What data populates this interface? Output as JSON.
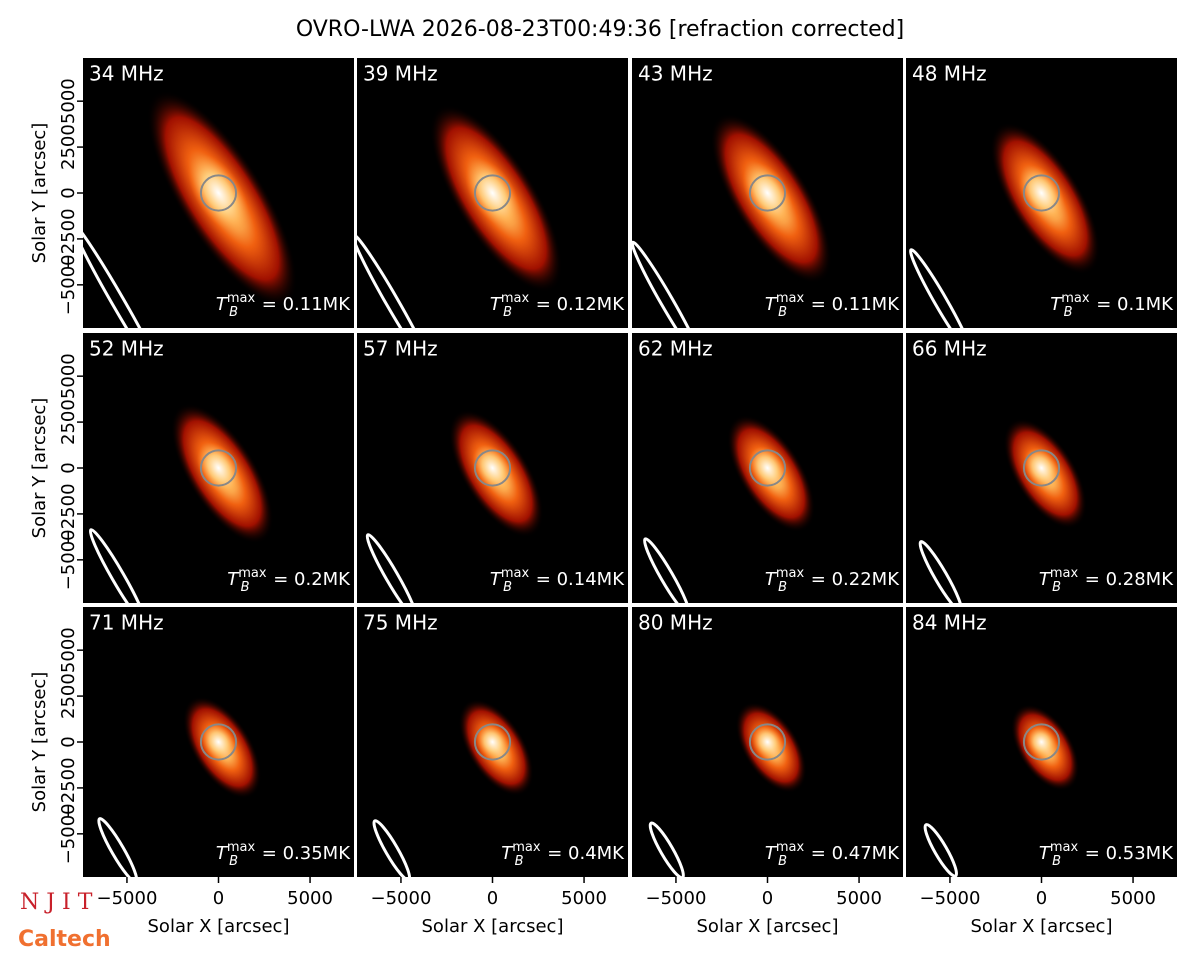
{
  "title": "OVRO-LWA 2026-08-23T00:49:36 [refraction corrected]",
  "logos": [
    "N J I T",
    "Caltech"
  ],
  "axes": {
    "xlabel": "Solar X [arcsec]",
    "ylabel": "Solar Y [arcsec]",
    "xlim": [
      -7400,
      7400
    ],
    "ylim": [
      -7350,
      7350
    ],
    "xticks": [
      {
        "value": -5000,
        "label": "−5000"
      },
      0,
      5000
    ],
    "yticks": [
      {
        "value": -5000,
        "label": "−5000"
      },
      {
        "value": -2500,
        "label": "−2500"
      },
      0,
      2500,
      5000
    ],
    "tb_symbol": "T",
    "tb_sub": "B",
    "tb_sup": "max"
  },
  "chart_data": [
    {
      "type": "image",
      "freq": {
        "value": 34,
        "label": "34 MHz"
      },
      "tb_max": {
        "value": 0.11,
        "label": " = 0.11MK"
      }
    },
    {
      "type": "image",
      "freq": {
        "value": 39,
        "label": "39 MHz"
      },
      "tb_max": {
        "value": 0.12,
        "label": " = 0.12MK"
      }
    },
    {
      "type": "image",
      "freq": {
        "value": 43,
        "label": "43 MHz"
      },
      "tb_max": {
        "value": 0.11,
        "label": " = 0.11MK"
      }
    },
    {
      "type": "image",
      "freq": {
        "value": 48,
        "label": "48 MHz"
      },
      "tb_max": {
        "value": 0.1,
        "label": " = 0.1MK"
      }
    },
    {
      "type": "image",
      "freq": {
        "value": 52,
        "label": "52 MHz"
      },
      "tb_max": {
        "value": 0.2,
        "label": " = 0.2MK"
      }
    },
    {
      "type": "image",
      "freq": {
        "value": 57,
        "label": "57 MHz"
      },
      "tb_max": {
        "value": 0.14,
        "label": " = 0.14MK"
      }
    },
    {
      "type": "image",
      "freq": {
        "value": 62,
        "label": "62 MHz"
      },
      "tb_max": {
        "value": 0.22,
        "label": " = 0.22MK"
      }
    },
    {
      "type": "image",
      "freq": {
        "value": 66,
        "label": "66 MHz"
      },
      "tb_max": {
        "value": 0.28,
        "label": " = 0.28MK"
      }
    },
    {
      "type": "image",
      "freq": {
        "value": 71,
        "label": "71 MHz"
      },
      "tb_max": {
        "value": 0.35,
        "label": " = 0.35MK"
      }
    },
    {
      "type": "image",
      "freq": {
        "value": 75,
        "label": "75 MHz"
      },
      "tb_max": {
        "value": 0.4,
        "label": " = 0.4MK"
      }
    },
    {
      "type": "image",
      "freq": {
        "value": 80,
        "label": "80 MHz"
      },
      "tb_max": {
        "value": 0.47,
        "label": " = 0.47MK"
      }
    },
    {
      "type": "image",
      "freq": {
        "value": 84,
        "label": "84 MHz"
      },
      "tb_max": {
        "value": 0.53,
        "label": " = 0.53MK"
      }
    }
  ]
}
